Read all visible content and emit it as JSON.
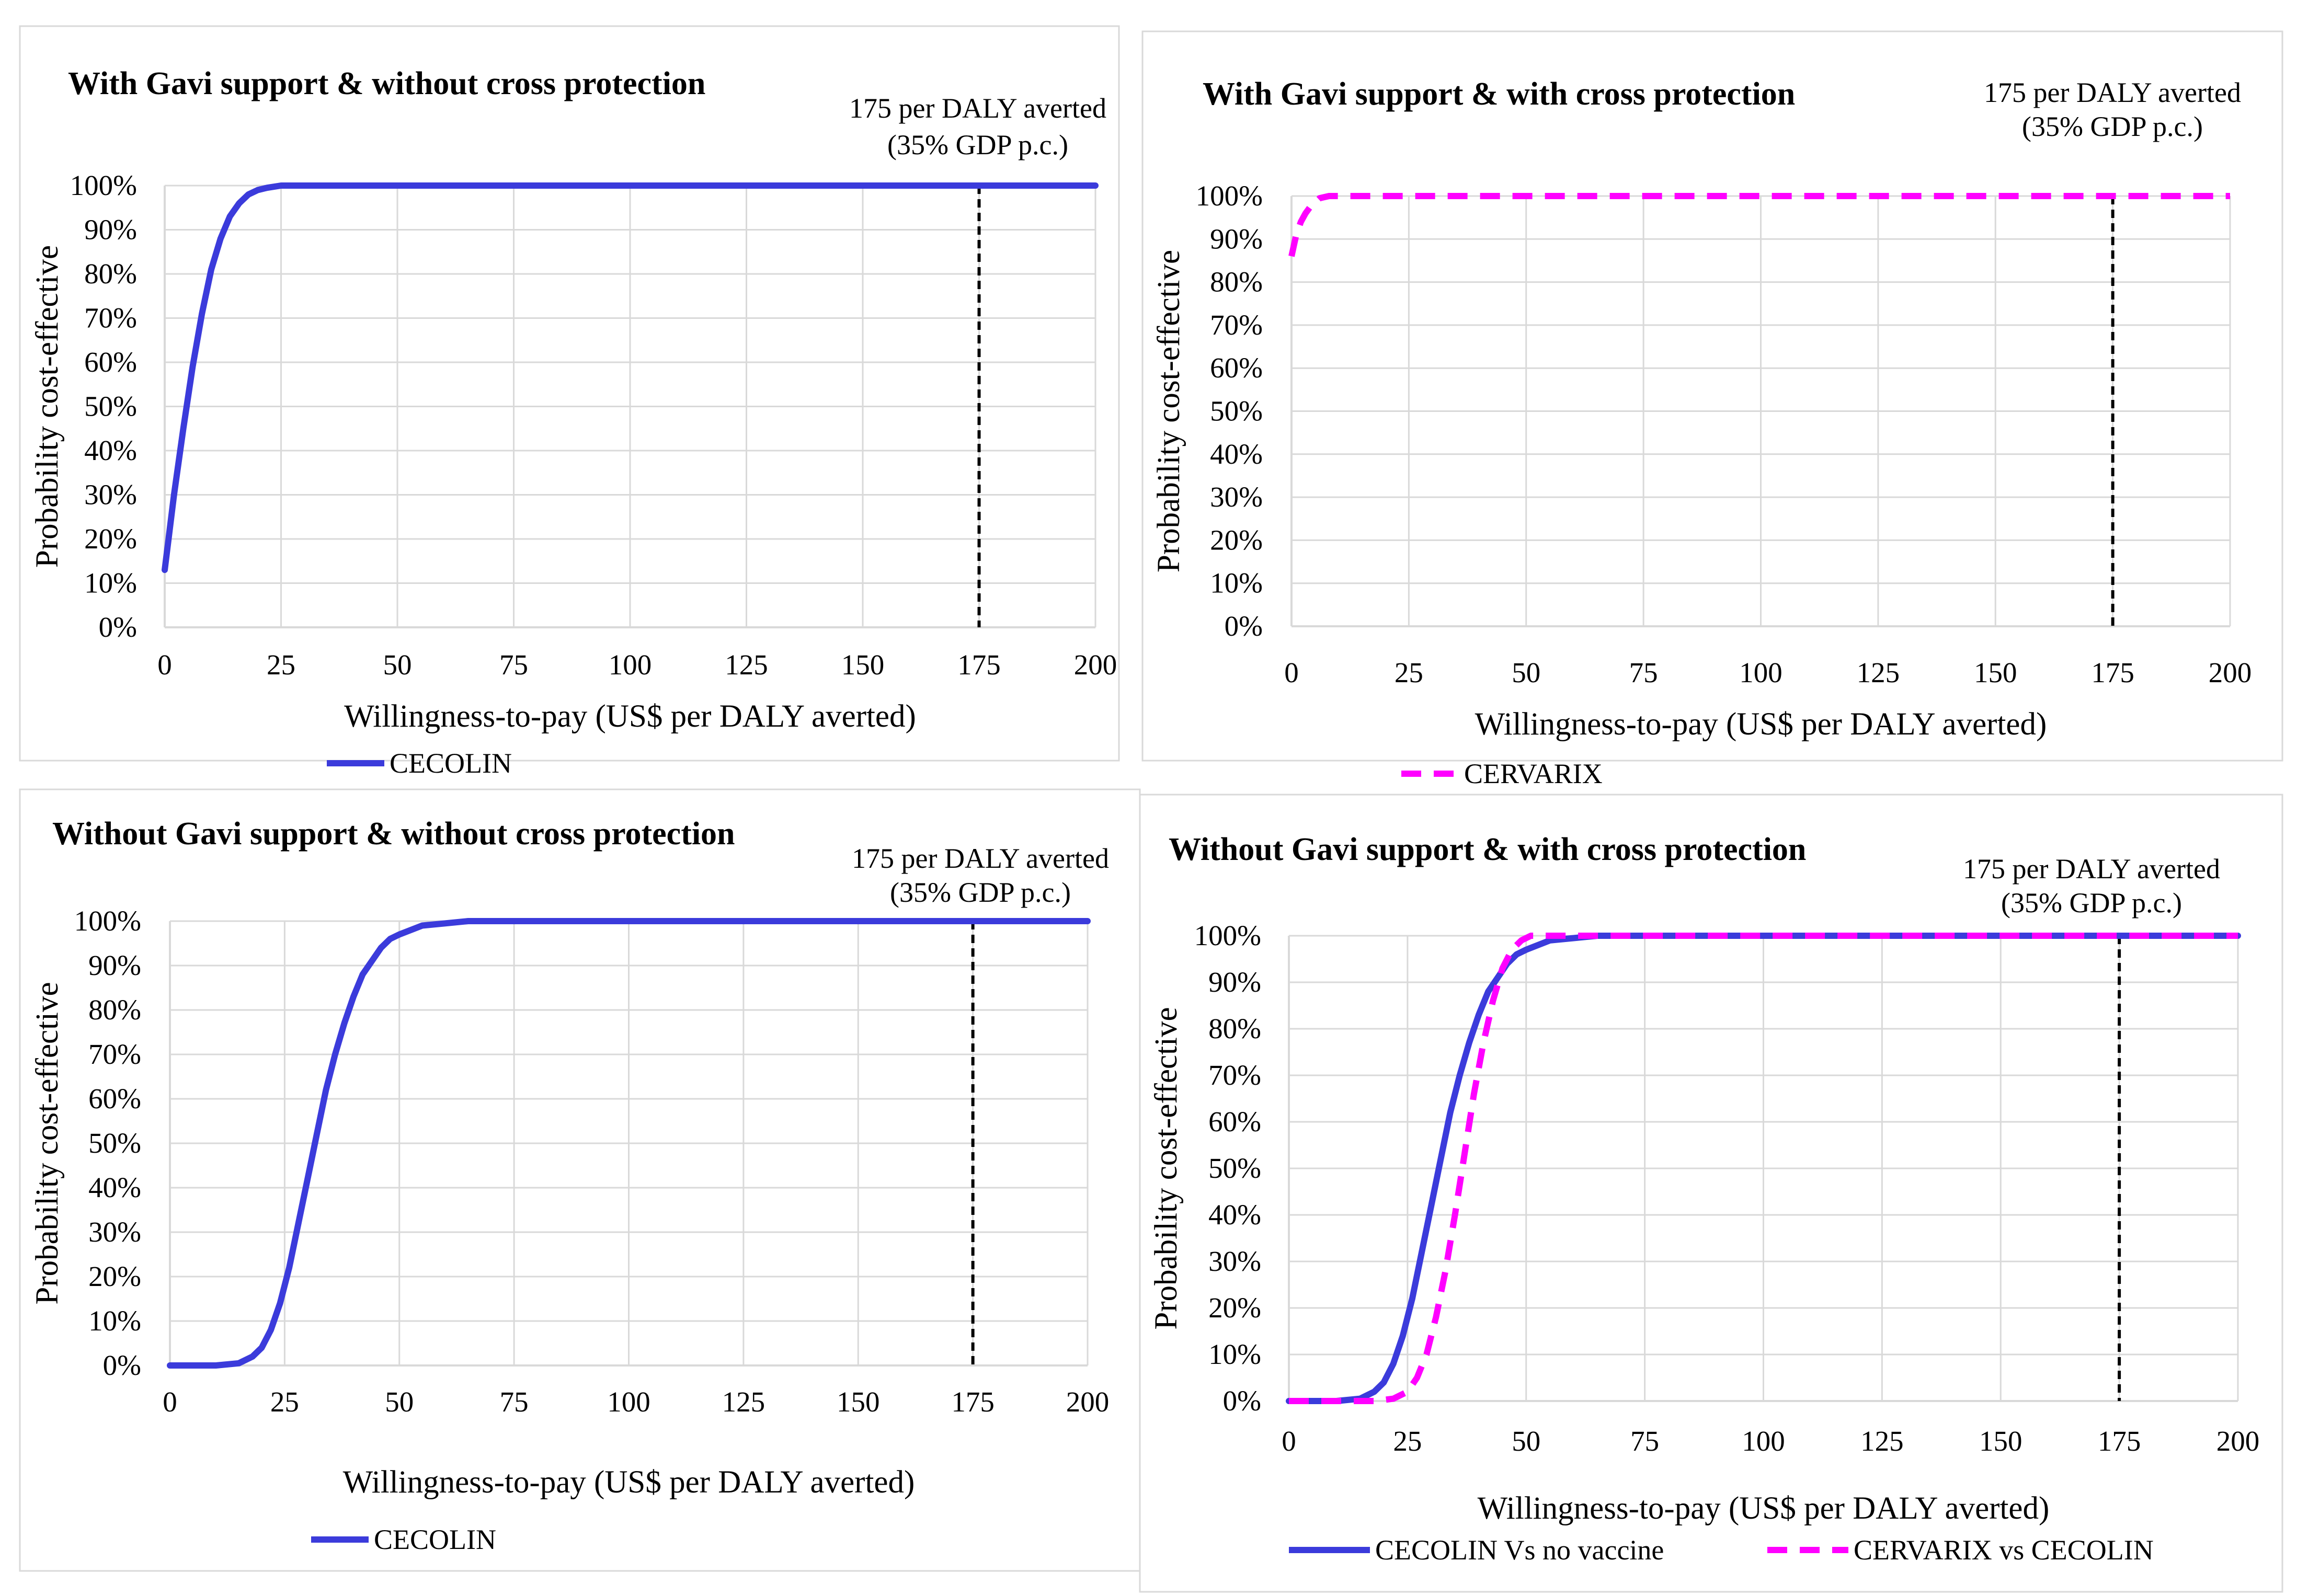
{
  "chart_data": [
    {
      "type": "line",
      "title": "With  Gavi support  & without  cross protection",
      "xlabel": "Willingness-to-pay  (US$  per DALY  averted)",
      "ylabel": "Probability cost-effective",
      "xlim": [
        0,
        200
      ],
      "ylim": [
        0,
        100
      ],
      "x_ticks": [
        "0",
        "25",
        "50",
        "75",
        "100",
        "125",
        "150",
        "175",
        "200"
      ],
      "y_ticks": [
        "0%",
        "10%",
        "20%",
        "30%",
        "40%",
        "50%",
        "60%",
        "70%",
        "80%",
        "90%",
        "100%"
      ],
      "threshold": {
        "x": 175,
        "line1": "175 per DALY  averted",
        "line2": "(35% GDP p.c.)"
      },
      "series": [
        {
          "name": "CECOLIN",
          "color": "#3b3bdb",
          "dash": "solid",
          "x": [
            0,
            2,
            4,
            6,
            8,
            10,
            12,
            14,
            16,
            18,
            20,
            22,
            25,
            30,
            200
          ],
          "y": [
            13,
            30,
            45,
            59,
            71,
            81,
            88,
            93,
            96,
            98,
            99,
            99.5,
            100,
            100,
            100
          ]
        }
      ]
    },
    {
      "type": "line",
      "title": "With  Gavi support  & with  cross protection",
      "xlabel": "Willingness-to-pay  (US$  per DALY  averted)",
      "ylabel": "Probability cost-effective",
      "xlim": [
        0,
        200
      ],
      "ylim": [
        0,
        100
      ],
      "x_ticks": [
        "0",
        "25",
        "50",
        "75",
        "100",
        "125",
        "150",
        "175",
        "200"
      ],
      "y_ticks": [
        "0%",
        "10%",
        "20%",
        "30%",
        "40%",
        "50%",
        "60%",
        "70%",
        "80%",
        "90%",
        "100%"
      ],
      "threshold": {
        "x": 175,
        "line1": "175 per DALY  averted",
        "line2": "(35% GDP p.c.)"
      },
      "series": [
        {
          "name": "CERVARIX",
          "color": "#ff00ff",
          "dash": "dashed",
          "x": [
            0,
            1,
            2,
            3,
            4,
            5,
            6,
            8,
            200
          ],
          "y": [
            86,
            91,
            94,
            96,
            97.5,
            98.5,
            99.5,
            100,
            100
          ]
        }
      ]
    },
    {
      "type": "line",
      "title": "Without  Gavi support  & without  cross protection",
      "xlabel": "Willingness-to-pay  (US$  per DALY  averted)",
      "ylabel": "Probability cost-effective",
      "xlim": [
        0,
        200
      ],
      "ylim": [
        0,
        100
      ],
      "x_ticks": [
        "0",
        "25",
        "50",
        "75",
        "100",
        "125",
        "150",
        "175",
        "200"
      ],
      "y_ticks": [
        "0%",
        "10%",
        "20%",
        "30%",
        "40%",
        "50%",
        "60%",
        "70%",
        "80%",
        "90%",
        "100%"
      ],
      "threshold": {
        "x": 175,
        "line1": "175 per DALY  averted",
        "line2": "(35% GDP p.c.)"
      },
      "series": [
        {
          "name": "CECOLIN",
          "color": "#3b3bdb",
          "dash": "solid",
          "x": [
            0,
            10,
            15,
            18,
            20,
            22,
            24,
            26,
            28,
            30,
            32,
            34,
            36,
            38,
            40,
            42,
            44,
            46,
            48,
            50,
            55,
            60,
            65,
            200
          ],
          "y": [
            0,
            0,
            0.5,
            2,
            4,
            8,
            14,
            22,
            32,
            42,
            52,
            62,
            70,
            77,
            83,
            88,
            91,
            94,
            96,
            97,
            99,
            99.5,
            100,
            100
          ]
        }
      ]
    },
    {
      "type": "line",
      "title": "Without  Gavi support  & with  cross protection",
      "xlabel": "Willingness-to-pay  (US$  per DALY  averted)",
      "ylabel": "Probability cost-effective",
      "xlim": [
        0,
        200
      ],
      "ylim": [
        0,
        100
      ],
      "x_ticks": [
        "0",
        "25",
        "50",
        "75",
        "100",
        "125",
        "150",
        "175",
        "200"
      ],
      "y_ticks": [
        "0%",
        "10%",
        "20%",
        "30%",
        "40%",
        "50%",
        "60%",
        "70%",
        "80%",
        "90%",
        "100%"
      ],
      "threshold": {
        "x": 175,
        "line1": "175 per DALY  averted",
        "line2": "(35% GDP p.c.)"
      },
      "series": [
        {
          "name": "CECOLIN Vs no vaccine",
          "color": "#3b3bdb",
          "dash": "solid",
          "x": [
            0,
            10,
            15,
            18,
            20,
            22,
            24,
            26,
            28,
            30,
            32,
            34,
            36,
            38,
            40,
            42,
            44,
            46,
            48,
            50,
            55,
            60,
            65,
            200
          ],
          "y": [
            0,
            0,
            0.5,
            2,
            4,
            8,
            14,
            22,
            32,
            42,
            52,
            62,
            70,
            77,
            83,
            88,
            91,
            94,
            96,
            97,
            99,
            99.5,
            100,
            100
          ]
        },
        {
          "name": "CERVARIX vs CECOLIN",
          "color": "#ff00ff",
          "dash": "dashed",
          "x": [
            0,
            18,
            22,
            25,
            27,
            29,
            31,
            33,
            35,
            37,
            39,
            41,
            43,
            45,
            47,
            49,
            51,
            53,
            200
          ],
          "y": [
            0,
            0,
            0.5,
            2,
            5,
            10,
            18,
            28,
            40,
            53,
            66,
            77,
            86,
            93,
            97,
            99,
            100,
            100,
            100
          ]
        }
      ]
    }
  ]
}
